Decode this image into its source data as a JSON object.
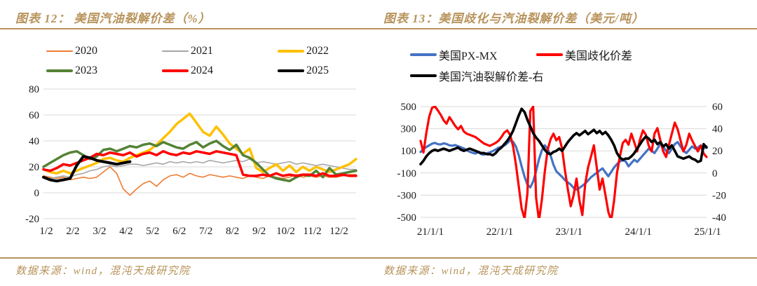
{
  "page": {
    "accent_gold": "#b8935b",
    "grid_color": "#d9d9d9",
    "axis_text_color": "#1a1a1a"
  },
  "figures": [
    {
      "title": "图表 12：  美国汽油裂解价差（%）",
      "source": "数据来源：wind，混沌天成研究院"
    },
    {
      "title": "图表 13：美国歧化与汽油裂解价差（美元/吨）",
      "source": "数据来源：wind，混沌天成研究院"
    }
  ],
  "chart_data": [
    {
      "type": "line",
      "title": "美国汽油裂解价差（%）",
      "grid": true,
      "legend_position": "top",
      "legend_rows": [
        [
          0,
          1,
          2
        ],
        [
          3,
          4,
          5
        ]
      ],
      "x_count": 48,
      "x_tick_labels": [
        "1/2",
        "2/2",
        "3/2",
        "4/2",
        "5/2",
        "6/2",
        "7/2",
        "8/2",
        "9/2",
        "10/2",
        "11/2",
        "12/2"
      ],
      "x_tick_positions": [
        0,
        4,
        8,
        12,
        16,
        20,
        24,
        28,
        32,
        36,
        40,
        44
      ],
      "ylim": [
        -20,
        80
      ],
      "y_ticks": [
        80,
        60,
        40,
        20,
        0,
        -20
      ],
      "series": [
        {
          "name": "2020",
          "color": "#ED7D31",
          "width": 1.6,
          "values": [
            13,
            12,
            11,
            12,
            10,
            11,
            12,
            11,
            12,
            16,
            20,
            15,
            3,
            -2,
            3,
            7,
            9,
            5,
            10,
            13,
            14,
            12,
            15,
            13,
            12,
            14,
            13,
            12,
            13,
            12,
            11,
            13,
            12,
            11,
            13,
            12,
            11,
            12,
            14,
            12,
            13,
            12,
            13,
            12,
            12,
            13,
            14,
            14
          ]
        },
        {
          "name": "2021",
          "color": "#A6A6A6",
          "width": 1.6,
          "values": [
            12,
            11,
            12,
            13,
            12,
            14,
            15,
            17,
            18,
            20,
            21,
            20,
            21,
            22,
            22,
            21,
            22,
            23,
            22,
            24,
            23,
            24,
            23,
            24,
            23,
            25,
            24,
            23,
            24,
            25,
            24,
            26,
            23,
            24,
            23,
            22,
            23,
            24,
            22,
            23,
            22,
            21,
            22,
            21,
            20,
            19,
            18,
            18
          ]
        },
        {
          "name": "2022",
          "color": "#FFC000",
          "width": 3.5,
          "values": [
            18,
            16,
            15,
            17,
            15,
            17,
            19,
            21,
            23,
            26,
            27,
            25,
            24,
            27,
            29,
            31,
            33,
            37,
            42,
            47,
            53,
            57,
            61,
            54,
            47,
            44,
            51,
            45,
            38,
            34,
            30,
            34,
            19,
            16,
            19,
            22,
            17,
            21,
            16,
            20,
            17,
            20,
            18,
            16,
            18,
            20,
            22,
            26
          ]
        },
        {
          "name": "2023",
          "color": "#548235",
          "width": 3.5,
          "values": [
            20,
            23,
            26,
            29,
            31,
            32,
            29,
            26,
            28,
            33,
            34,
            32,
            34,
            36,
            35,
            37,
            38,
            36,
            39,
            37,
            35,
            34,
            37,
            39,
            35,
            38,
            40,
            36,
            33,
            37,
            29,
            27,
            23,
            18,
            13,
            11,
            10,
            9,
            12,
            14,
            13,
            17,
            12,
            19,
            14,
            15,
            16,
            17
          ]
        },
        {
          "name": "2024",
          "color": "#FF0000",
          "width": 3.5,
          "values": [
            18,
            17,
            19,
            22,
            21,
            23,
            25,
            27,
            30,
            29,
            31,
            30,
            29,
            31,
            28,
            30,
            31,
            29,
            32,
            30,
            29,
            31,
            30,
            32,
            31,
            30,
            32,
            31,
            30,
            29,
            14,
            13,
            13,
            14,
            13,
            15,
            13,
            14,
            13,
            14,
            14,
            13,
            15,
            13,
            13,
            14,
            13,
            13
          ]
        },
        {
          "name": "2025",
          "color": "#000000",
          "width": 4,
          "values": [
            12,
            10,
            9,
            10,
            11,
            21,
            28,
            27,
            25,
            24,
            23,
            22,
            23,
            24
          ]
        }
      ]
    },
    {
      "type": "line",
      "title": "美国歧化与汽油裂解价差（美元/吨）",
      "grid": true,
      "legend_position": "top",
      "legend_rows": [
        [
          0,
          1
        ],
        [
          2
        ]
      ],
      "x_count": 100,
      "x_tick_labels": [
        "21/1/1",
        "22/1/1",
        "23/1/1",
        "24/1/1",
        "25/1/1"
      ],
      "x_tick_positions": [
        0,
        24,
        48,
        72,
        96
      ],
      "ylim_left": [
        -500,
        500
      ],
      "y_ticks_left": [
        500,
        300,
        100,
        -100,
        -300,
        -500
      ],
      "ylim_right": [
        -40,
        60
      ],
      "y_ticks_right": [
        60,
        40,
        20,
        0,
        -20,
        -40
      ],
      "series": [
        {
          "name": "美国PX-MX",
          "axis": "left",
          "color": "#4472C4",
          "width": 3.2,
          "values": [
            90,
            115,
            135,
            150,
            165,
            172,
            160,
            158,
            168,
            162,
            150,
            147,
            152,
            142,
            132,
            122,
            105,
            92,
            82,
            75,
            88,
            70,
            65,
            78,
            85,
            98,
            112,
            128,
            138,
            148,
            168,
            195,
            182,
            140,
            60,
            -40,
            -135,
            -205,
            -230,
            -175,
            -85,
            25,
            105,
            150,
            118,
            58,
            -25,
            -85,
            -110,
            -135,
            -165,
            -185,
            -205,
            -235,
            -250,
            -235,
            -215,
            -195,
            -168,
            -138,
            -118,
            -98,
            -78,
            -58,
            -95,
            -130,
            -90,
            -50,
            -20,
            5,
            15,
            5,
            -40,
            -10,
            20,
            0,
            30,
            60,
            90,
            120,
            100,
            80,
            120,
            160,
            140,
            100,
            80,
            120,
            160,
            180,
            140,
            100,
            80,
            110,
            140,
            120,
            130,
            150,
            120,
            140
          ]
        },
        {
          "name": "美国歧化价差",
          "axis": "left",
          "color": "#FF0000",
          "width": 3.2,
          "values": [
            190,
            85,
            260,
            410,
            490,
            500,
            465,
            425,
            375,
            345,
            405,
            365,
            325,
            295,
            325,
            275,
            255,
            245,
            235,
            225,
            205,
            185,
            165,
            155,
            145,
            158,
            172,
            192,
            225,
            265,
            285,
            245,
            145,
            -20,
            -220,
            -420,
            -510,
            -280,
            460,
            500,
            -320,
            -530,
            -340,
            -90,
            110,
            205,
            255,
            195,
            225,
            120,
            -80,
            -250,
            -400,
            -300,
            -150,
            -350,
            -480,
            -200,
            -50,
            50,
            150,
            -50,
            -250,
            -150,
            -300,
            -450,
            -530,
            -350,
            -100,
            50,
            170,
            200,
            155,
            255,
            175,
            95,
            205,
            285,
            245,
            145,
            95,
            255,
            305,
            195,
            95,
            45,
            155,
            255,
            355,
            295,
            195,
            95,
            155,
            255,
            195,
            145,
            95,
            145,
            75,
            45
          ]
        },
        {
          "name": "美国汽油裂解价差-右",
          "axis": "right",
          "color": "#000000",
          "width": 3.6,
          "values": [
            8,
            11,
            15,
            18,
            20,
            21,
            20,
            21,
            22,
            21,
            20,
            21,
            22,
            23,
            21,
            20,
            21,
            22,
            21,
            20,
            19,
            18,
            18,
            17,
            17,
            16,
            18,
            21,
            23,
            26,
            29,
            33,
            38,
            45,
            52,
            58,
            55,
            48,
            42,
            36,
            32,
            29,
            25,
            21,
            18,
            17,
            19,
            20,
            22,
            20,
            24,
            28,
            31,
            34,
            36,
            34,
            36,
            38,
            35,
            37,
            39,
            36,
            38,
            35,
            37,
            34,
            30,
            25,
            18,
            14,
            12,
            13,
            13,
            15,
            18,
            22,
            26,
            30,
            33,
            31,
            28,
            30,
            26,
            28,
            24,
            26,
            22,
            25,
            20,
            15,
            14,
            13,
            14,
            15,
            13,
            12,
            10,
            11,
            26,
            23
          ]
        }
      ]
    }
  ]
}
